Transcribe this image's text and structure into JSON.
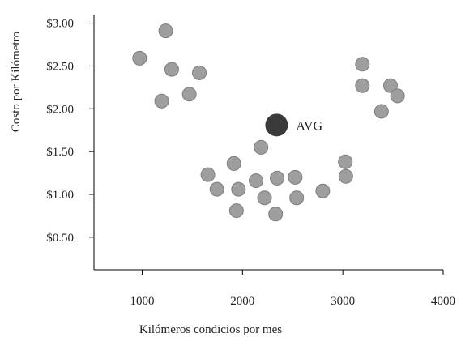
{
  "chart_data": {
    "type": "scatter",
    "title": "",
    "xlabel": "Kilómeros condicios por mes",
    "ylabel": "Costo por Kilómetro",
    "xlim": [
      520,
      4000
    ],
    "ylim": [
      0.12,
      3.1
    ],
    "x_ticks": [
      {
        "value": 1000,
        "label": "1000"
      },
      {
        "value": 2000,
        "label": "2000"
      },
      {
        "value": 3000,
        "label": "3000"
      },
      {
        "value": 4000,
        "label": "4000"
      }
    ],
    "y_ticks": [
      {
        "value": 0.5,
        "label": "$0.50"
      },
      {
        "value": 1.0,
        "label": "$1.00"
      },
      {
        "value": 1.5,
        "label": "$1.50"
      },
      {
        "value": 2.0,
        "label": "$2.00"
      },
      {
        "value": 2.5,
        "label": "$2.50"
      },
      {
        "value": 3.0,
        "label": "$3.00"
      }
    ],
    "grid": false,
    "colors": {
      "point": "#9e9e9e",
      "point_edge": "#7d7d7d",
      "average": "#3a3a3a",
      "axis": "#000000"
    },
    "points": [
      {
        "x": 975,
        "y": 2.59
      },
      {
        "x": 1235,
        "y": 2.91
      },
      {
        "x": 1295,
        "y": 2.46
      },
      {
        "x": 1570,
        "y": 2.42
      },
      {
        "x": 1195,
        "y": 2.09
      },
      {
        "x": 1470,
        "y": 2.17
      },
      {
        "x": 1655,
        "y": 1.23
      },
      {
        "x": 1745,
        "y": 1.06
      },
      {
        "x": 1915,
        "y": 1.36
      },
      {
        "x": 1960,
        "y": 1.06
      },
      {
        "x": 1940,
        "y": 0.81
      },
      {
        "x": 2135,
        "y": 1.16
      },
      {
        "x": 2185,
        "y": 1.55
      },
      {
        "x": 2220,
        "y": 0.96
      },
      {
        "x": 2345,
        "y": 1.19
      },
      {
        "x": 2330,
        "y": 0.77
      },
      {
        "x": 2525,
        "y": 1.2
      },
      {
        "x": 2540,
        "y": 0.96
      },
      {
        "x": 2800,
        "y": 1.04
      },
      {
        "x": 3025,
        "y": 1.38
      },
      {
        "x": 3030,
        "y": 1.21
      },
      {
        "x": 3195,
        "y": 2.52
      },
      {
        "x": 3195,
        "y": 2.27
      },
      {
        "x": 3475,
        "y": 2.27
      },
      {
        "x": 3545,
        "y": 2.15
      },
      {
        "x": 3385,
        "y": 1.97
      }
    ],
    "average": {
      "label": "AVG",
      "x": 2340,
      "y": 1.81
    }
  }
}
